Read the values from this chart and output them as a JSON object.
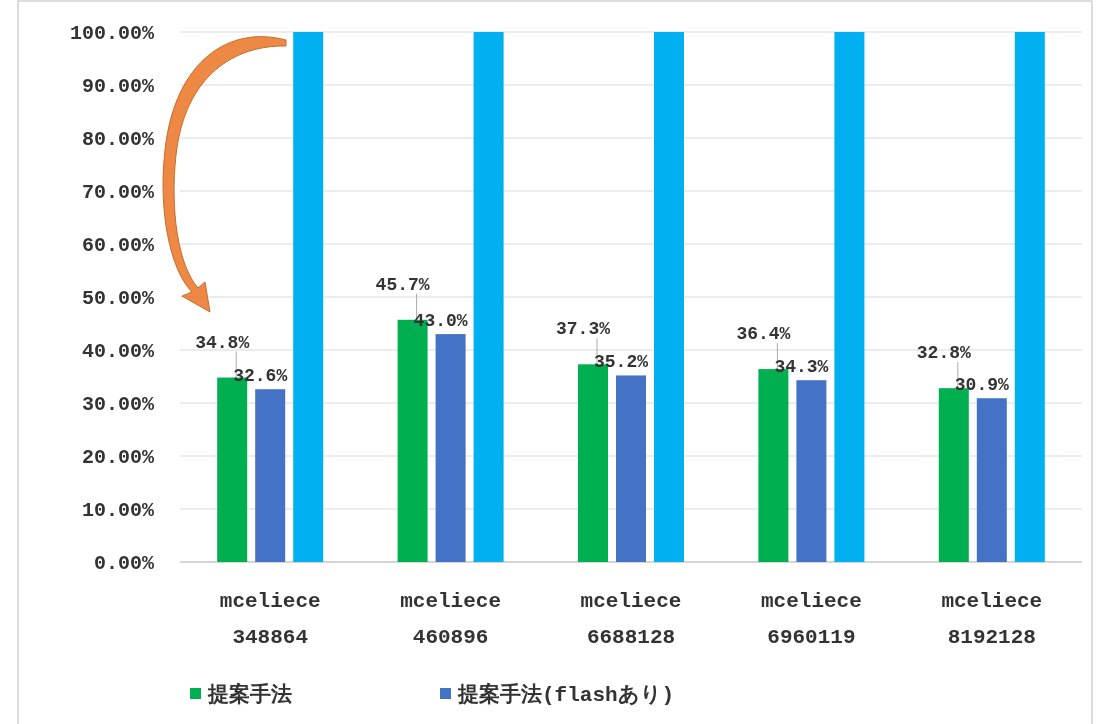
{
  "chart_data": {
    "type": "bar",
    "categories": [
      "mceliece 348864",
      "mceliece 460896",
      "mceliece 6688128",
      "mceliece 6960119",
      "mceliece 8192128"
    ],
    "series": [
      {
        "name": "提案手法",
        "color": "#00b050",
        "values": [
          34.8,
          45.7,
          37.3,
          36.4,
          32.8
        ],
        "value_labels": [
          "34.8%",
          "45.7%",
          "37.3%",
          "36.4%",
          "32.8%"
        ]
      },
      {
        "name": "提案手法(flashあり)",
        "color": "#4472c4",
        "values": [
          32.6,
          43.0,
          35.2,
          34.3,
          30.9
        ],
        "value_labels": [
          "32.6%",
          "43.0%",
          "35.2%",
          "34.3%",
          "30.9%"
        ]
      },
      {
        "color": "#00b0f0",
        "values": [
          100,
          100,
          100,
          100,
          100
        ]
      }
    ],
    "ylim": [
      0,
      100
    ],
    "yticks": [
      {
        "value": 0,
        "label": "0.00%"
      },
      {
        "value": 10,
        "label": "10.00%"
      },
      {
        "value": 20,
        "label": "20.00%"
      },
      {
        "value": 30,
        "label": "30.00%"
      },
      {
        "value": 40,
        "label": "40.00%"
      },
      {
        "value": 50,
        "label": "50.00%"
      },
      {
        "value": 60,
        "label": "60.00%"
      },
      {
        "value": 70,
        "label": "70.00%"
      },
      {
        "value": 80,
        "label": "80.00%"
      },
      {
        "value": 90,
        "label": "90.00%"
      },
      {
        "value": 100,
        "label": "100.00%"
      }
    ],
    "grid": "y",
    "legend": "bottom"
  }
}
